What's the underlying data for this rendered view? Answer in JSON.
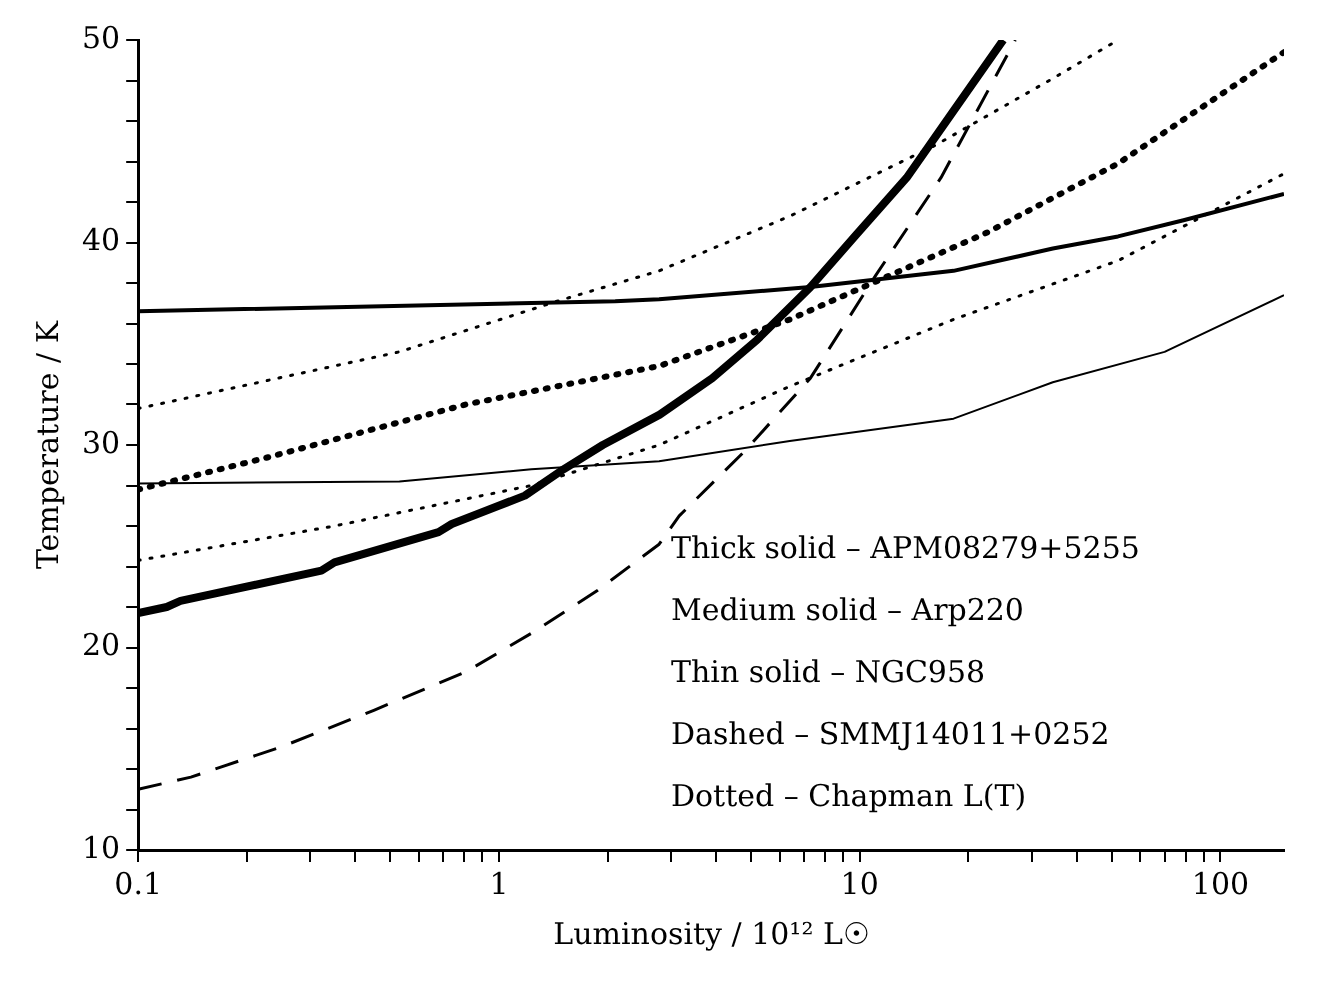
{
  "chart_data": {
    "type": "line",
    "xlabel": "Luminosity / 10¹² L☉",
    "ylabel": "Temperature / K",
    "log": "x",
    "grid": false,
    "legend": false,
    "marker": "none",
    "xlim": [
      0.1,
      150
    ],
    "xticks": [
      0.1,
      {
        "value": 0.2,
        "label": null
      },
      {
        "value": 0.3,
        "label": null
      },
      {
        "value": 0.4,
        "label": null
      },
      {
        "value": 0.5,
        "label": null
      },
      {
        "value": 0.6,
        "label": null
      },
      {
        "value": 0.7,
        "label": null
      },
      {
        "value": 0.8,
        "label": null
      },
      {
        "value": 0.9,
        "label": null
      },
      1,
      {
        "value": 2,
        "label": null
      },
      {
        "value": 3,
        "label": null
      },
      {
        "value": 4,
        "label": null
      },
      {
        "value": 5,
        "label": null
      },
      {
        "value": 6,
        "label": null
      },
      {
        "value": 7,
        "label": null
      },
      {
        "value": 8,
        "label": null
      },
      {
        "value": 9,
        "label": null
      },
      10,
      {
        "value": 20,
        "label": null
      },
      {
        "value": 30,
        "label": null
      },
      {
        "value": 40,
        "label": null
      },
      {
        "value": 50,
        "label": null
      },
      {
        "value": 60,
        "label": null
      },
      {
        "value": 70,
        "label": null
      },
      {
        "value": 80,
        "label": null
      },
      {
        "value": 90,
        "label": null
      },
      100
    ],
    "ylim": [
      10,
      50
    ],
    "yticks": [
      10,
      {
        "value": 12,
        "label": null
      },
      {
        "value": 14,
        "label": null
      },
      {
        "value": 16,
        "label": null
      },
      {
        "value": 18,
        "label": null
      },
      20,
      {
        "value": 22,
        "label": null
      },
      {
        "value": 24,
        "label": null
      },
      {
        "value": 26,
        "label": null
      },
      {
        "value": 28,
        "label": null
      },
      30,
      {
        "value": 32,
        "label": null
      },
      {
        "value": 34,
        "label": null
      },
      {
        "value": 36,
        "label": null
      },
      {
        "value": 38,
        "label": null
      },
      40,
      {
        "value": 42,
        "label": null
      },
      {
        "value": 44,
        "label": null
      },
      {
        "value": 46,
        "label": null
      },
      {
        "value": 48,
        "label": null
      },
      50
    ],
    "annotations": [
      "Thick solid – APM08279+5255",
      "Medium solid – Arp220",
      "Thin solid – NGC958",
      "Dashed – SMMJ14011+0252",
      "Dotted – Chapman L(T)"
    ],
    "series": [
      {
        "color": "#000000",
        "line_style": "solid",
        "x": [
          0.1,
          0.12,
          0.131,
          0.322,
          0.35,
          0.68,
          0.74,
          1.18,
          1.51,
          1.94,
          2.79,
          3.9,
          5.2,
          7.3,
          9.8,
          13.5,
          18.2,
          25
        ],
        "values": [
          21.7,
          22.0,
          22.3,
          23.8,
          24.2,
          25.7,
          26.1,
          27.5,
          28.8,
          30.0,
          31.5,
          33.3,
          35.2,
          37.8,
          40.4,
          43.2,
          46.5,
          50
        ]
      },
      {
        "color": "#000000",
        "line_style": "solid",
        "x": [
          0.1,
          2.1,
          2.78,
          7.3,
          18.2,
          34.3,
          52,
          79,
          150
        ],
        "values": [
          36.6,
          37.1,
          37.2,
          37.8,
          38.6,
          39.7,
          40.3,
          41.1,
          42.4
        ]
      },
      {
        "color": "#000000",
        "line_style": "solid",
        "x": [
          0.1,
          0.53,
          1.23,
          2.78,
          6.4,
          18.2,
          34.3,
          70,
          150
        ],
        "values": [
          28.1,
          28.2,
          28.8,
          29.2,
          30.2,
          31.3,
          33.1,
          34.6,
          37.4
        ]
      },
      {
        "color": "#000000",
        "line_style": "dashed",
        "x": [
          0.1,
          0.14,
          0.25,
          0.45,
          0.81,
          1.23,
          1.87,
          2.78,
          3.16,
          4.8,
          7.3,
          11.1,
          16.8,
          27
        ],
        "values": [
          13.0,
          13.6,
          15.1,
          16.9,
          18.8,
          20.7,
          22.8,
          25.1,
          26.5,
          29.7,
          33.3,
          38.4,
          43.2,
          50
        ]
      },
      {
        "color": "#000000",
        "line_style": "dotted",
        "x": [
          0.1,
          0.53,
          1.45,
          2.78,
          6.4,
          16.2,
          34.3,
          52
        ],
        "values": [
          31.8,
          34.6,
          37.1,
          38.6,
          41.3,
          44.8,
          48.1,
          50
        ]
      },
      {
        "color": "#000000",
        "line_style": "dotted",
        "x": [
          0.1,
          0.23,
          0.81,
          2.78,
          6.4,
          22.6,
          52,
          150
        ],
        "values": [
          27.8,
          29.4,
          32.0,
          33.9,
          36.2,
          40.5,
          43.9,
          49.4
        ]
      },
      {
        "color": "#000000",
        "line_style": "dotted",
        "x": [
          0.1,
          0.35,
          1.23,
          2.78,
          6.4,
          18.2,
          52,
          150
        ],
        "values": [
          24.3,
          26.0,
          28.0,
          30.0,
          32.9,
          36.2,
          39.1,
          43.4
        ]
      }
    ]
  }
}
